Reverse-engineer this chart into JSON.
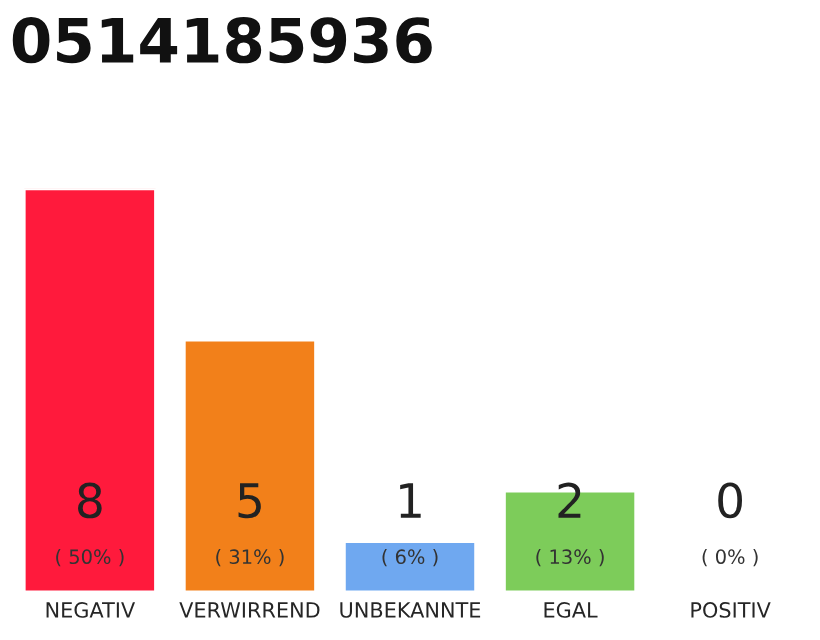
{
  "chart_data": {
    "type": "bar",
    "title": "0514185936",
    "categories": [
      "NEGATIV",
      "VERWIRREND",
      "UNBEKANNTE",
      "EGAL",
      "POSITIV"
    ],
    "values": [
      8,
      5,
      1,
      2,
      0
    ],
    "colors": [
      "#ff1a3c",
      "#f2801a",
      "#6fa8f0",
      "#7dcc5a",
      null
    ],
    "data_labels": true,
    "annotations": [
      "( 50% )",
      "( 31% )",
      "( 6% )",
      "( 13% )",
      "( 0% )"
    ],
    "grid": false,
    "legend": false,
    "tick_labels": "x"
  }
}
